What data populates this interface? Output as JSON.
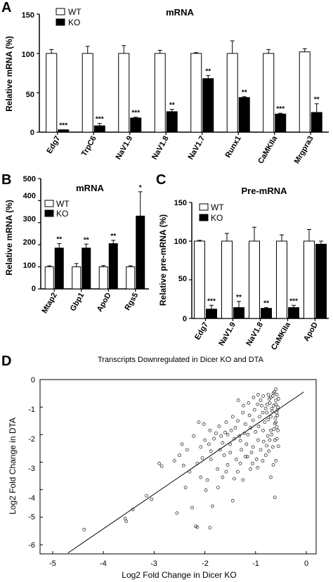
{
  "colors": {
    "wt": "#ffffff",
    "ko": "#000000",
    "axis": "#000000",
    "scatter": "#333333"
  },
  "chart_data": [
    {
      "panel": "A",
      "type": "bar",
      "title": "mRNA",
      "ylabel": "Relative mRNA (%)",
      "ylim": [
        0,
        150
      ],
      "yticks": [
        "0",
        "50",
        "100",
        "150"
      ],
      "legend": [
        "WT",
        "KO"
      ],
      "categories": [
        "Edg7",
        "TrpC6",
        "NaV1.9",
        "NaV1.8",
        "NaV1.7",
        "Runx1",
        "CaMKIIa",
        "Mrgpra3"
      ],
      "series": [
        {
          "name": "WT",
          "values": [
            100,
            100,
            100,
            100,
            100,
            100,
            100,
            102
          ],
          "errors": [
            5,
            9,
            10,
            4,
            1,
            16,
            5,
            4
          ]
        },
        {
          "name": "KO",
          "values": [
            3,
            8,
            18,
            26,
            68,
            44,
            23,
            25
          ],
          "errors": [
            0,
            3,
            1,
            3,
            4,
            1,
            1,
            11
          ]
        }
      ],
      "significance": [
        "***",
        "***",
        "***",
        "**",
        "**",
        "**",
        "***",
        "**"
      ]
    },
    {
      "panel": "B",
      "type": "bar",
      "title": "mRNA",
      "ylabel": "Relative mRNA (%)",
      "ylim": [
        0,
        500
      ],
      "yticks": [
        "0",
        "100",
        "200",
        "300",
        "400",
        "500"
      ],
      "legend": [
        "WT",
        "KO"
      ],
      "categories": [
        "Mtap2",
        "Gbp1",
        "ApoD",
        "Rgs5"
      ],
      "series": [
        {
          "name": "WT",
          "values": [
            100,
            100,
            100,
            100
          ],
          "errors": [
            5,
            15,
            6,
            5
          ]
        },
        {
          "name": "KO",
          "values": [
            185,
            185,
            205,
            330
          ],
          "errors": [
            20,
            18,
            15,
            110
          ]
        }
      ],
      "significance": [
        "**",
        "**",
        "**",
        "*"
      ]
    },
    {
      "panel": "C",
      "type": "bar",
      "title": "Pre-mRNA",
      "ylabel": "Relative pre-mRNA (%)",
      "ylim": [
        0,
        150
      ],
      "yticks": [
        "0",
        "50",
        "100",
        "150"
      ],
      "legend": [
        "WT",
        "KO"
      ],
      "categories": [
        "Edg7",
        "NaV1.9",
        "NaV1.8",
        "CaMKIIa",
        "ApoD"
      ],
      "series": [
        {
          "name": "WT",
          "values": [
            100,
            100,
            100,
            100,
            100
          ],
          "errors": [
            1,
            10,
            18,
            8,
            15
          ]
        },
        {
          "name": "KO",
          "values": [
            12,
            14,
            13,
            14,
            96
          ],
          "errors": [
            5,
            8,
            1,
            3,
            4
          ]
        }
      ],
      "significance": [
        "***",
        "**",
        "**",
        "***",
        ""
      ]
    },
    {
      "panel": "D",
      "type": "scatter",
      "title": "Transcripts Downregulated in Dicer KO and DTA",
      "xlabel": "Log2 Fold Change in Dicer KO",
      "ylabel": "Log2 Fold Change in DTA",
      "xlim": [
        -5,
        0
      ],
      "ylim": [
        -6,
        0
      ],
      "xticks": [
        "-5",
        "-4",
        "-3",
        "-2",
        "-1",
        "0"
      ],
      "yticks": [
        "0",
        "-1",
        "-2",
        "-3",
        "-4",
        "-5",
        "-6"
      ],
      "regression_line": {
        "x": [
          -4.7,
          -0.05
        ],
        "y": [
          -6.3,
          -0.45
        ]
      },
      "points": [
        [
          -4.38,
          -5.45
        ],
        [
          -3.55,
          -5.15
        ],
        [
          -3.57,
          -5.05
        ],
        [
          -3.42,
          -4.72
        ],
        [
          -3.15,
          -4.22
        ],
        [
          -3.05,
          -4.35
        ],
        [
          -2.9,
          -3.05
        ],
        [
          -2.85,
          -3.15
        ],
        [
          -2.55,
          -4.85
        ],
        [
          -2.38,
          -3.92
        ],
        [
          -2.25,
          -4.65
        ],
        [
          -2.18,
          -5.33
        ],
        [
          -2.15,
          -5.36
        ],
        [
          -1.9,
          -5.38
        ],
        [
          -1.98,
          -4.02
        ],
        [
          -2.08,
          -3.55
        ],
        [
          -1.85,
          -4.6
        ],
        [
          -1.74,
          -3.92
        ],
        [
          -1.65,
          -3.55
        ],
        [
          -1.55,
          -3.1
        ],
        [
          -1.45,
          -4.4
        ],
        [
          -1.35,
          -3.35
        ],
        [
          -1.25,
          -3.65
        ],
        [
          -1.2,
          -2.8
        ],
        [
          -1.1,
          -3.25
        ],
        [
          -1.05,
          -2.45
        ],
        [
          -1.95,
          -3.65
        ],
        [
          -2.5,
          -2.75
        ],
        [
          -2.6,
          -2.95
        ],
        [
          -2.22,
          -2.05
        ],
        [
          -2.12,
          -1.55
        ],
        [
          -2.02,
          -1.62
        ],
        [
          -2.08,
          -2.45
        ],
        [
          -1.92,
          -2.35
        ],
        [
          -1.82,
          -2.15
        ],
        [
          -1.7,
          -2.55
        ],
        [
          -1.6,
          -1.92
        ],
        [
          -1.5,
          -2.35
        ],
        [
          -1.4,
          -1.75
        ],
        [
          -1.3,
          -2.22
        ],
        [
          -1.2,
          -1.62
        ],
        [
          -1.15,
          -2.0
        ],
        [
          -1.05,
          -1.48
        ],
        [
          -0.95,
          -2.2
        ],
        [
          -0.9,
          -2.55
        ],
        [
          -0.85,
          -1.85
        ],
        [
          -0.8,
          -2.75
        ],
        [
          -0.75,
          -1.45
        ],
        [
          -0.7,
          -3.55
        ],
        [
          -0.62,
          -4.28
        ],
        [
          -0.65,
          -3.1
        ],
        [
          -0.6,
          -2.95
        ],
        [
          -0.55,
          -2.42
        ],
        [
          -0.58,
          -1.72
        ],
        [
          -2.3,
          -3.35
        ],
        [
          -2.42,
          -3.12
        ],
        [
          -1.88,
          -2.9
        ],
        [
          -1.75,
          -3.25
        ],
        [
          -1.62,
          -2.75
        ],
        [
          -1.5,
          -2.65
        ],
        [
          -1.38,
          -2.9
        ],
        [
          -1.28,
          -2.55
        ],
        [
          -1.18,
          -2.35
        ],
        [
          -1.08,
          -2.65
        ],
        [
          -0.98,
          -2.9
        ],
        [
          -1.72,
          -1.7
        ],
        [
          -1.58,
          -1.55
        ],
        [
          -1.45,
          -1.35
        ],
        [
          -1.35,
          -1.5
        ],
        [
          -1.25,
          -1.2
        ],
        [
          -1.12,
          -1.3
        ],
        [
          -1.02,
          -1.1
        ],
        [
          -0.92,
          -1.35
        ],
        [
          -0.88,
          -0.95
        ],
        [
          -0.82,
          -1.55
        ],
        [
          -0.78,
          -1.2
        ],
        [
          -0.72,
          -0.85
        ],
        [
          -0.68,
          -1.05
        ],
        [
          -0.66,
          -0.6
        ],
        [
          -0.63,
          -0.45
        ],
        [
          -0.6,
          -0.9
        ],
        [
          -0.57,
          -1.3
        ],
        [
          -0.55,
          -0.7
        ],
        [
          -0.62,
          -1.6
        ],
        [
          -0.7,
          -1.85
        ],
        [
          -0.76,
          -2.05
        ],
        [
          -0.84,
          -2.25
        ],
        [
          -0.94,
          -1.7
        ],
        [
          -1.0,
          -1.9
        ],
        [
          -1.1,
          -1.75
        ],
        [
          -1.22,
          -1.95
        ],
        [
          -1.32,
          -2.05
        ],
        [
          -1.42,
          -2.15
        ],
        [
          -1.55,
          -2.0
        ],
        [
          -1.65,
          -2.3
        ],
        [
          -1.78,
          -1.95
        ],
        [
          -1.9,
          -1.85
        ],
        [
          -2.0,
          -2.2
        ],
        [
          -2.35,
          -2.55
        ],
        [
          -2.45,
          -2.35
        ],
        [
          -0.58,
          -0.55
        ],
        [
          -0.6,
          -0.75
        ],
        [
          -0.64,
          -0.95
        ],
        [
          -0.67,
          -1.15
        ],
        [
          -0.7,
          -1.35
        ],
        [
          -0.73,
          -0.7
        ],
        [
          -0.77,
          -0.9
        ],
        [
          -0.8,
          -1.05
        ],
        [
          -0.86,
          -1.2
        ],
        [
          -0.9,
          -0.75
        ],
        [
          -0.96,
          -0.9
        ],
        [
          -1.04,
          -0.65
        ],
        [
          -1.14,
          -0.85
        ],
        [
          -1.24,
          -0.95
        ],
        [
          -1.34,
          -0.75
        ],
        [
          -0.56,
          -1.0
        ],
        [
          -0.59,
          -1.2
        ],
        [
          -0.61,
          -1.4
        ],
        [
          -0.64,
          -1.8
        ],
        [
          -0.68,
          -2.0
        ],
        [
          -0.72,
          -2.2
        ],
        [
          -0.58,
          -2.15
        ],
        [
          -0.56,
          -1.85
        ],
        [
          -0.6,
          -1.55
        ],
        [
          -0.57,
          -1.1
        ],
        [
          -0.6,
          -0.35
        ],
        [
          -0.65,
          -0.5
        ],
        [
          -0.7,
          -0.65
        ],
        [
          -0.75,
          -0.55
        ],
        [
          -0.85,
          -0.6
        ],
        [
          -0.95,
          -0.55
        ],
        [
          -1.48,
          -1.85
        ],
        [
          -1.68,
          -2.05
        ],
        [
          -1.88,
          -2.6
        ],
        [
          -2.05,
          -2.85
        ],
        [
          -2.15,
          -3.05
        ],
        [
          -1.58,
          -3.35
        ],
        [
          -1.42,
          -3.6
        ],
        [
          -1.3,
          -3.05
        ],
        [
          -1.16,
          -2.8
        ],
        [
          -1.06,
          -3.05
        ],
        [
          -0.96,
          -3.2
        ],
        [
          -0.86,
          -2.95
        ],
        [
          -0.78,
          -2.4
        ],
        [
          -0.74,
          -2.6
        ],
        [
          -0.66,
          -2.45
        ],
        [
          -0.62,
          -2.2
        ]
      ]
    }
  ]
}
